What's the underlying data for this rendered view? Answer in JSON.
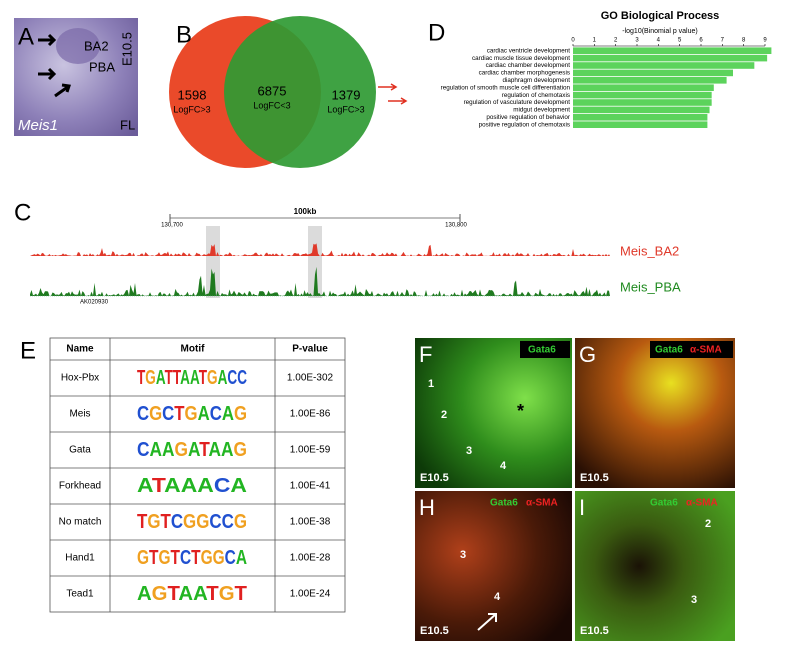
{
  "panel_a": {
    "letter": "A",
    "labels": [
      "BA2",
      "PBA",
      "E10.5",
      "FL"
    ],
    "gene": "Meis1"
  },
  "panel_b": {
    "letter": "B",
    "left": {
      "count": "1598",
      "label": "LogFC>3"
    },
    "middle": {
      "count": "6875",
      "label": "LogFC<3"
    },
    "right": {
      "count": "1379",
      "label": "LogFC>3"
    }
  },
  "panel_c": {
    "letter": "C",
    "scale": "100kb",
    "start": "130,700",
    "end": "130,800",
    "tracks": [
      "Meis_BA2",
      "Meis_PBA"
    ],
    "gene": "AK020930"
  },
  "panel_d": {
    "letter": "D",
    "chart_data": {
      "type": "bar",
      "title": "GO Biological Process",
      "xlabel": "-log10(Binomial p value)",
      "xlim": [
        0,
        9
      ],
      "xticks": [
        0,
        1,
        2,
        3,
        4,
        5,
        6,
        7,
        8,
        9
      ],
      "color": "#5cd35c",
      "categories": [
        "cardiac ventricle development",
        "cardiac muscle tissue development",
        "cardiac chamber development",
        "cardiac chamber morphogenesis",
        "diaphragm development",
        "regulation of smooth muscle cell differentiation",
        "regulation of chemotaxis",
        "regulation of vasculature development",
        "midgut development",
        "positive regulation of behavior",
        "positive regulation of chemotaxis"
      ],
      "values": [
        9.3,
        9.1,
        8.5,
        7.5,
        7.2,
        6.6,
        6.5,
        6.5,
        6.4,
        6.3,
        6.3
      ]
    }
  },
  "panel_e": {
    "letter": "E",
    "table": {
      "header": [
        "Name",
        "Motif",
        "P-value"
      ],
      "rows": [
        [
          "Hox-Pbx",
          "TGATTAATGACC",
          "1.00E-302"
        ],
        [
          "Meis",
          "CGCTGACAG",
          "1.00E-86"
        ],
        [
          "Gata",
          "CAAGATAAG",
          "1.00E-59"
        ],
        [
          "Forkhead",
          "ATAAACA",
          "1.00E-41"
        ],
        [
          "No match",
          "TGTCGGCCG",
          "1.00E-38"
        ],
        [
          "Hand1",
          "GTGTCTGGCA",
          "1.00E-28"
        ],
        [
          "Tead1",
          "AGTAATGT",
          "1.00E-24"
        ]
      ]
    }
  },
  "panel_f": {
    "letter": "F",
    "stain": "Gata6",
    "stage": "E10.5",
    "marks": [
      "1",
      "2",
      "3",
      "4",
      "*"
    ]
  },
  "panel_g": {
    "letter": "G",
    "stain": "Gata6",
    "stain2": "α-SMA",
    "stage": "E10.5"
  },
  "panel_h": {
    "letter": "H",
    "stain": "Gata6",
    "stain2": "α-SMA",
    "stage": "E10.5",
    "marks": [
      "3",
      "4"
    ]
  },
  "panel_i": {
    "letter": "I",
    "stain": "Gata6",
    "stain2": "α-SMA",
    "stage": "E10.5",
    "marks": [
      "2",
      "3"
    ]
  }
}
